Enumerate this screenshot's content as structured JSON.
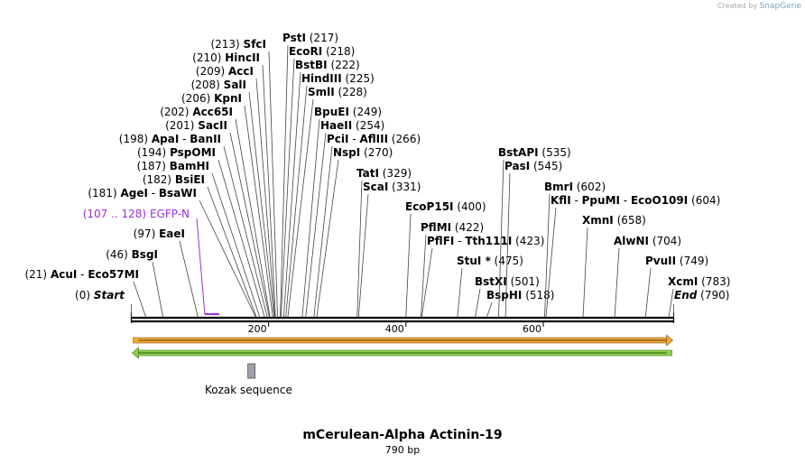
{
  "credit": {
    "prefix": "Created by",
    "brand": "SnapGene"
  },
  "map": {
    "title": "mCerulean-Alpha Actinin-19",
    "length_label": "790 bp",
    "length": 790,
    "ticks": [
      200,
      400,
      600
    ],
    "feature_label": "EGFP-N",
    "feature_range": "(107 .. 128)",
    "feature_start": 107,
    "feature_end": 128,
    "kozak_label": "Kozak sequence",
    "kozak_pos": 175,
    "colors": {
      "feature": "#9b30d9",
      "orf_fwd": "#f2a93b",
      "orf_rev": "#8fd14f",
      "kozak": "#a0a0a8"
    }
  },
  "sites": [
    {
      "pos": "(0)",
      "names": [
        "Start"
      ],
      "italic": true,
      "at": [
        0
      ]
    },
    {
      "pos": "(21)",
      "names": [
        "AcuI",
        "Eco57MI"
      ],
      "at": [
        21
      ]
    },
    {
      "pos": "(46)",
      "names": [
        "BsgI"
      ],
      "at": [
        46
      ]
    },
    {
      "pos": "(97)",
      "names": [
        "EaeI"
      ],
      "at": [
        97
      ]
    },
    {
      "pos": "(181)",
      "names": [
        "AgeI",
        "BsaWI"
      ],
      "at": [
        181
      ]
    },
    {
      "pos": "(182)",
      "names": [
        "BsiEI"
      ],
      "at": [
        182
      ]
    },
    {
      "pos": "(187)",
      "names": [
        "BamHI"
      ],
      "at": [
        187
      ]
    },
    {
      "pos": "(194)",
      "names": [
        "PspOMI"
      ],
      "at": [
        194
      ]
    },
    {
      "pos": "(198)",
      "names": [
        "ApaI",
        "BanII"
      ],
      "at": [
        198
      ]
    },
    {
      "pos": "(201)",
      "names": [
        "SacII"
      ],
      "at": [
        201
      ]
    },
    {
      "pos": "(202)",
      "names": [
        "Acc65I"
      ],
      "at": [
        202
      ]
    },
    {
      "pos": "(206)",
      "names": [
        "KpnI"
      ],
      "at": [
        206
      ]
    },
    {
      "pos": "(208)",
      "names": [
        "SalI"
      ],
      "at": [
        208
      ]
    },
    {
      "pos": "(209)",
      "names": [
        "AccI"
      ],
      "at": [
        209
      ]
    },
    {
      "pos": "(210)",
      "names": [
        "HincII"
      ],
      "at": [
        210
      ]
    },
    {
      "pos": "(213)",
      "names": [
        "SfcI"
      ],
      "at": [
        213
      ]
    },
    {
      "pos": "(217)",
      "names": [
        "PstI"
      ],
      "at": [
        217
      ]
    },
    {
      "pos": "(218)",
      "names": [
        "EcoRI"
      ],
      "at": [
        218
      ]
    },
    {
      "pos": "(222)",
      "names": [
        "BstBI"
      ],
      "at": [
        222
      ]
    },
    {
      "pos": "(225)",
      "names": [
        "HindIII"
      ],
      "at": [
        225
      ]
    },
    {
      "pos": "(228)",
      "names": [
        "SmlI"
      ],
      "at": [
        228
      ]
    },
    {
      "pos": "(249)",
      "names": [
        "BpuEI"
      ],
      "at": [
        249
      ]
    },
    {
      "pos": "(254)",
      "names": [
        "HaeII"
      ],
      "at": [
        254
      ]
    },
    {
      "pos": "(266)",
      "names": [
        "PciI",
        "AflIII"
      ],
      "at": [
        266
      ]
    },
    {
      "pos": "(270)",
      "names": [
        "NspI"
      ],
      "at": [
        270
      ]
    },
    {
      "pos": "(329)",
      "names": [
        "TatI"
      ],
      "at": [
        329
      ]
    },
    {
      "pos": "(331)",
      "names": [
        "ScaI"
      ],
      "at": [
        331
      ]
    },
    {
      "pos": "(400)",
      "names": [
        "EcoP15I"
      ],
      "at": [
        400
      ]
    },
    {
      "pos": "(422)",
      "names": [
        "PflMI"
      ],
      "at": [
        422
      ]
    },
    {
      "pos": "(423)",
      "names": [
        "PflFI",
        "Tth111I"
      ],
      "at": [
        423
      ]
    },
    {
      "pos": "(475)",
      "names": [
        "StuI *"
      ],
      "at": [
        475
      ]
    },
    {
      "pos": "(501)",
      "names": [
        "BstXI"
      ],
      "at": [
        501
      ]
    },
    {
      "pos": "(518)",
      "names": [
        "BspHI"
      ],
      "at": [
        518
      ]
    },
    {
      "pos": "(535)",
      "names": [
        "BstAPI"
      ],
      "at": [
        535
      ]
    },
    {
      "pos": "(545)",
      "names": [
        "PasI"
      ],
      "at": [
        545
      ]
    },
    {
      "pos": "(602)",
      "names": [
        "BmrI"
      ],
      "at": [
        602
      ]
    },
    {
      "pos": "(604)",
      "names": [
        "KflI",
        "PpuMI",
        "EcoO109I"
      ],
      "at": [
        604
      ]
    },
    {
      "pos": "(658)",
      "names": [
        "XmnI"
      ],
      "at": [
        658
      ]
    },
    {
      "pos": "(704)",
      "names": [
        "AlwNI"
      ],
      "at": [
        704
      ]
    },
    {
      "pos": "(749)",
      "names": [
        "PvuII"
      ],
      "at": [
        749
      ]
    },
    {
      "pos": "(783)",
      "names": [
        "XcmI"
      ],
      "at": [
        783
      ]
    },
    {
      "pos": "(790)",
      "names": [
        "End"
      ],
      "italic": true,
      "at": [
        790
      ]
    }
  ]
}
